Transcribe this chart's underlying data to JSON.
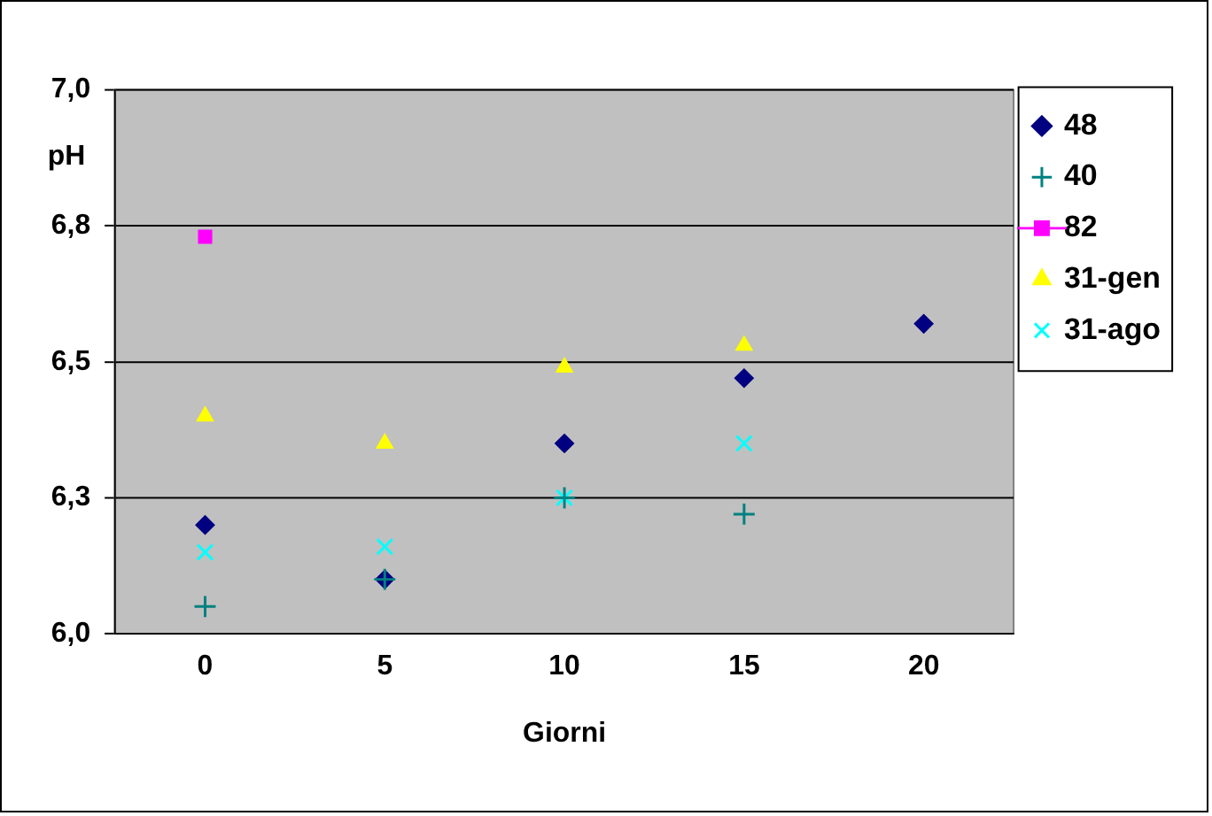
{
  "chart_data": {
    "type": "scatter",
    "xlabel": "Giorni",
    "ylabel": "pH",
    "categories": [
      "0",
      "5",
      "10",
      "15",
      "20"
    ],
    "series": [
      {
        "name": "48",
        "color": "#000080",
        "marker": "diamond",
        "values": [
          6.2,
          6.1,
          6.35,
          6.47,
          6.57
        ]
      },
      {
        "name": "40",
        "color": "#008080",
        "marker": "cross",
        "values": [
          6.05,
          6.1,
          6.25,
          6.22,
          null
        ]
      },
      {
        "name": "82",
        "type": "line",
        "color": "#ff00ff",
        "marker": "square",
        "line_style": "solid",
        "values": [
          6.73,
          null,
          null,
          null,
          null
        ]
      },
      {
        "name": "31-gen",
        "color": "#ffff00",
        "marker": "triangle",
        "values": [
          6.4,
          6.35,
          6.49,
          6.53,
          null
        ]
      },
      {
        "name": "31-ago",
        "color": "#00ffff",
        "marker": "x",
        "values": [
          6.15,
          6.16,
          6.25,
          6.35,
          null
        ]
      }
    ],
    "ylim": [
      6,
      7
    ],
    "yticks": [
      {
        "value": 6,
        "label": "6,0"
      },
      {
        "value": 6.25,
        "label": "6,3"
      },
      {
        "value": 6.5,
        "label": "6,5"
      },
      {
        "value": 6.75,
        "label": "6,8"
      },
      {
        "value": 7,
        "label": "7,0"
      }
    ],
    "grid": "y",
    "legend": "right"
  }
}
